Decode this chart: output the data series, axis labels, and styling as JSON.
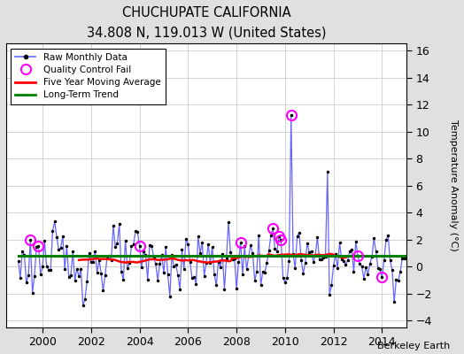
{
  "title": "CHUCHUPATE CALIFORNIA",
  "subtitle": "34.808 N, 119.013 W (United States)",
  "credit": "Berkeley Earth",
  "ylabel": "Temperature Anomaly (°C)",
  "xlim": [
    1998.5,
    2015.0
  ],
  "ylim": [
    -4.5,
    16.5
  ],
  "yticks": [
    -4,
    -2,
    0,
    2,
    4,
    6,
    8,
    10,
    12,
    14,
    16
  ],
  "xticks": [
    2000,
    2002,
    2004,
    2006,
    2008,
    2010,
    2012,
    2014
  ],
  "line_color": "#6666ff",
  "dot_color": "black",
  "ma_color": "red",
  "trend_color": "green",
  "qc_color": "magenta",
  "background_color": "#e0e0e0",
  "plot_bg_color": "#ffffff",
  "grid_color": "#cccccc"
}
